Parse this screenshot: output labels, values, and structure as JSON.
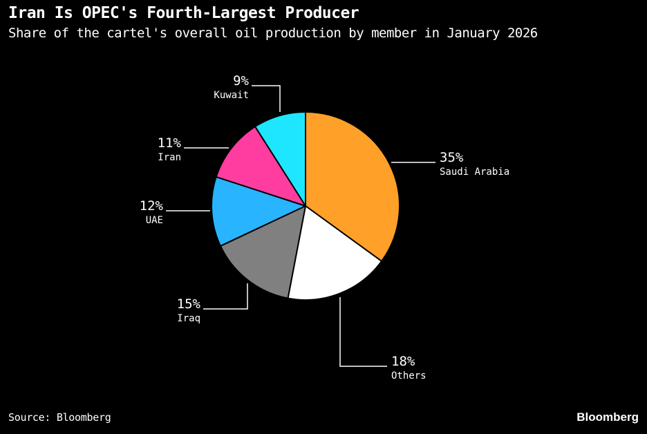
{
  "header": {
    "title": "Iran Is OPEC's Fourth-Largest Producer",
    "subtitle": "Share of the cartel's overall oil production by member in January 2026"
  },
  "footer": {
    "source": "Source: Bloomberg",
    "brand": "Bloomberg"
  },
  "chart_data": {
    "type": "pie",
    "start_angle_deg": 0,
    "direction": "clockwise",
    "background": "#000000",
    "slice_stroke": "#000000",
    "slices": [
      {
        "label": "Saudi Arabia",
        "value": 35,
        "pct_label": "35%",
        "color": "#ffa028"
      },
      {
        "label": "Others",
        "value": 18,
        "pct_label": "18%",
        "color": "#ffffff"
      },
      {
        "label": "Iraq",
        "value": 15,
        "pct_label": "15%",
        "color": "#808080"
      },
      {
        "label": "UAE",
        "value": 12,
        "pct_label": "12%",
        "color": "#28b4ff"
      },
      {
        "label": "Iran",
        "value": 11,
        "pct_label": "11%",
        "color": "#ff3ca0"
      },
      {
        "label": "Kuwait",
        "value": 9,
        "pct_label": "9%",
        "color": "#1ee6ff"
      }
    ]
  }
}
